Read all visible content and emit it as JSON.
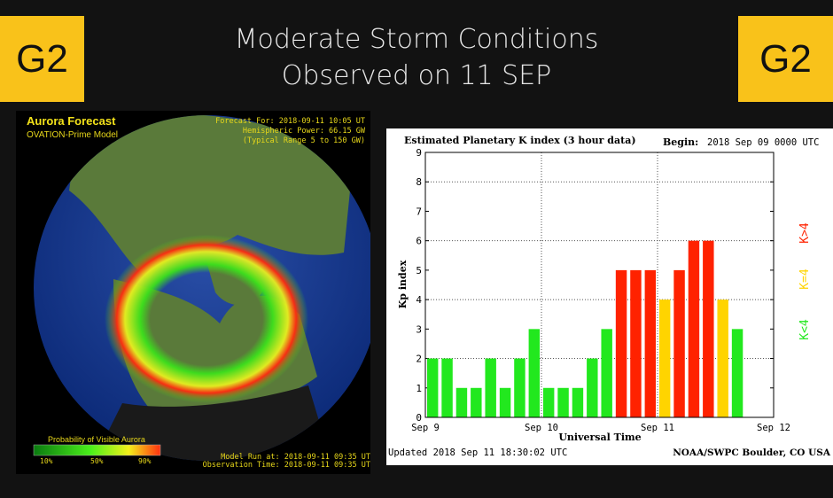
{
  "badges": {
    "left": "G2",
    "right": "G2"
  },
  "title": {
    "line1": "Moderate Storm Conditions",
    "line2": "Observed on 11 SEP"
  },
  "aurora_map": {
    "title": "Aurora Forecast",
    "subtitle": "OVATION-Prime Model",
    "forecast_for": "Forecast For: 2018-09-11 10:05 UT",
    "hemispheric_power": "Hemispheric Power: 66.15 GW",
    "typical_range": "(Typical Range 5 to 150 GW)",
    "legend_title": "Probability of Visible Aurora",
    "legend_ticks": [
      "10%",
      "50%",
      "90%"
    ],
    "model_run": "Model Run at: 2018-09-11 09:35 UT",
    "observation_time": "Observation Time: 2018-09-11 09:35 UT"
  },
  "chart_data": {
    "type": "bar",
    "title": "Estimated Planetary K index (3 hour data)",
    "begin_label": "Begin:",
    "begin_value": "2018 Sep 09 0000 UTC",
    "xlabel": "Universal Time",
    "ylabel": "Kp index",
    "ylim": [
      0,
      9
    ],
    "yticks": [
      "0",
      "1",
      "2",
      "3",
      "4",
      "5",
      "6",
      "7",
      "8",
      "9"
    ],
    "xticks": [
      "Sep 9",
      "Sep 10",
      "Sep 11",
      "Sep 12"
    ],
    "bars_per_day": 8,
    "values": [
      2,
      2,
      1,
      1,
      2,
      1,
      2,
      3,
      1,
      1,
      1,
      2,
      3,
      5,
      5,
      5,
      4,
      5,
      6,
      6,
      4,
      3
    ],
    "legend": [
      {
        "label": "K>4",
        "color": "#ff2200"
      },
      {
        "label": "K=4",
        "color": "#ffd400"
      },
      {
        "label": "K<4",
        "color": "#22e81e"
      }
    ],
    "grid": true,
    "updated": "Updated 2018 Sep 11 18:30:02 UTC",
    "source": "NOAA/SWPC Boulder, CO USA"
  },
  "colors": {
    "badge": "#f9c21a",
    "low": "#22e81e",
    "mid": "#ffd400",
    "high": "#ff2200"
  }
}
